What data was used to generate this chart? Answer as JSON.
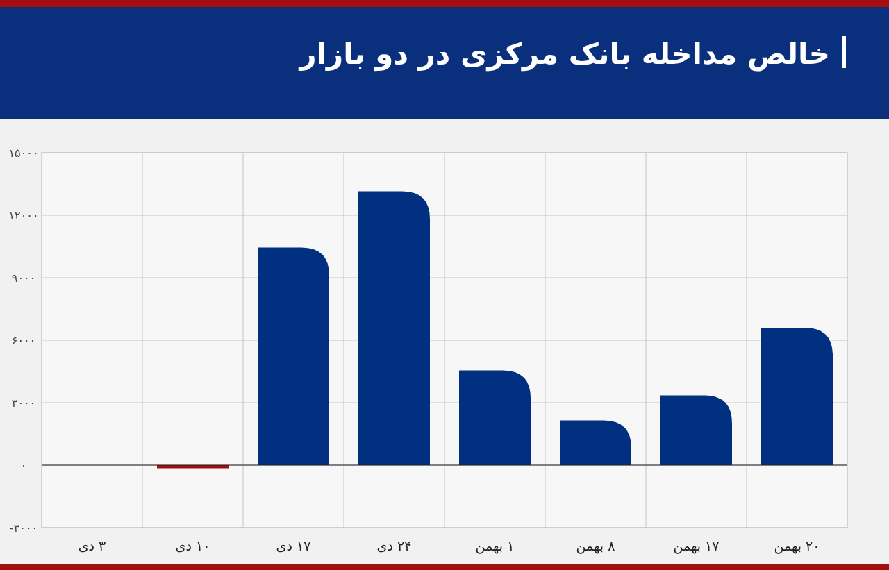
{
  "chart_data": {
    "type": "bar",
    "title": "خالص مداخله بانک مرکزی در دو بازار",
    "categories": [
      "۳ دی",
      "۱۰ دی",
      "۱۷ دی",
      "۲۴ دی",
      "۱ بهمن",
      "۸ بهمن",
      "۱۷ بهمن",
      "۲۰ بهمن"
    ],
    "values": [
      0,
      -150,
      10450,
      13150,
      4550,
      2150,
      3350,
      6600
    ],
    "colors": [
      "#00307f",
      "#a50e0e",
      "#00307f",
      "#00307f",
      "#00307f",
      "#00307f",
      "#00307f",
      "#00307f"
    ],
    "ylim": [
      -3000,
      15000
    ],
    "yticks": [
      {
        "value": -3000,
        "label": "-۳۰۰۰"
      },
      {
        "value": 0,
        "label": "۰"
      },
      {
        "value": 3000,
        "label": "۳۰۰۰"
      },
      {
        "value": 6000,
        "label": "۶۰۰۰"
      },
      {
        "value": 9000,
        "label": "۹۰۰۰"
      },
      {
        "value": 12000,
        "label": "۱۲۰۰۰"
      },
      {
        "value": 15000,
        "label": "۱۵۰۰۰"
      }
    ],
    "grid": true
  }
}
